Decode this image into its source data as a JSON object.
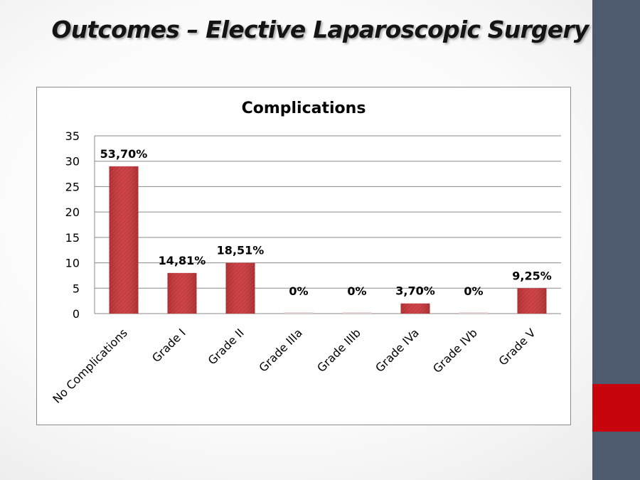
{
  "slide": {
    "title": "Outcomes – Elective Laparoscopic Surgery",
    "sidebar_color": "#4e5a6e",
    "accent_color": "#c8050d"
  },
  "chart_data": {
    "type": "bar",
    "title": "Complications",
    "xlabel": "",
    "ylabel": "",
    "ylim": [
      0,
      35
    ],
    "yticks": [
      0,
      5,
      10,
      15,
      20,
      25,
      30,
      35
    ],
    "grid": true,
    "legend": "none",
    "bar_color": "#c7353a",
    "categories": [
      "No Complications",
      "Grade I",
      "Grade II",
      "Grade IIIa",
      "Grade IIIb",
      "Grade IVa",
      "Grade IVb",
      "Grade V"
    ],
    "values": [
      29,
      8,
      10,
      0,
      0,
      2,
      0,
      5
    ],
    "data_labels": [
      "53,70%",
      "14,81%",
      "18,51%",
      "0%",
      "0%",
      "3,70%",
      "0%",
      "9,25%"
    ]
  }
}
